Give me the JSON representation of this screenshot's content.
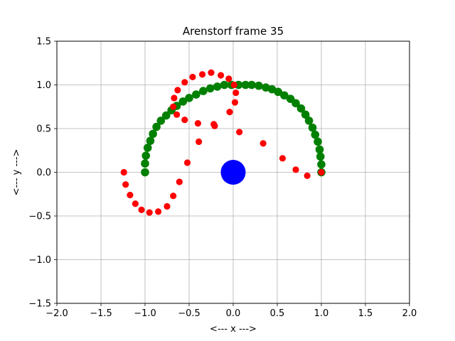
{
  "chart_data": {
    "type": "scatter",
    "title": "Arenstorf frame 35",
    "xlabel": "<---  x  --->",
    "ylabel": "<---  y  --->",
    "xlim": [
      -2.0,
      2.0
    ],
    "ylim": [
      -1.5,
      1.5
    ],
    "grid": true,
    "x_ticks": [
      "−2.0",
      "−1.5",
      "−1.0",
      "−0.5",
      "0.0",
      "0.5",
      "1.0",
      "1.5",
      "2.0"
    ],
    "y_ticks": [
      "−1.5",
      "−1.0",
      "−0.5",
      "0.0",
      "0.5",
      "1.0",
      "1.5"
    ],
    "series": [
      {
        "color": "#008000",
        "marker": "large-dot",
        "points": [
          [
            1.0,
            0.0
          ],
          [
            1.0,
            0.09
          ],
          [
            0.99,
            0.18
          ],
          [
            0.98,
            0.26
          ],
          [
            0.96,
            0.35
          ],
          [
            0.93,
            0.43
          ],
          [
            0.9,
            0.51
          ],
          [
            0.86,
            0.59
          ],
          [
            0.82,
            0.66
          ],
          [
            0.77,
            0.73
          ],
          [
            0.71,
            0.79
          ],
          [
            0.65,
            0.84
          ],
          [
            0.58,
            0.88
          ],
          [
            0.51,
            0.92
          ],
          [
            0.44,
            0.95
          ],
          [
            0.37,
            0.97
          ],
          [
            0.29,
            0.99
          ],
          [
            0.21,
            1.0
          ],
          [
            0.14,
            1.0
          ],
          [
            0.06,
            1.0
          ],
          [
            -0.02,
            1.0
          ],
          [
            -0.1,
            1.0
          ],
          [
            -0.18,
            0.98
          ],
          [
            -0.26,
            0.96
          ],
          [
            -0.34,
            0.93
          ],
          [
            -0.42,
            0.89
          ],
          [
            -0.5,
            0.85
          ],
          [
            -0.57,
            0.81
          ],
          [
            -0.64,
            0.76
          ],
          [
            -0.7,
            0.71
          ],
          [
            -0.76,
            0.65
          ],
          [
            -0.82,
            0.59
          ],
          [
            -0.87,
            0.52
          ],
          [
            -0.91,
            0.44
          ],
          [
            -0.94,
            0.36
          ],
          [
            -0.97,
            0.28
          ],
          [
            -0.99,
            0.19
          ],
          [
            -1.0,
            0.1
          ],
          [
            -1.0,
            0.0
          ]
        ]
      },
      {
        "color": "#ff0000",
        "marker": "dot",
        "points": [
          [
            1.0,
            0.0
          ],
          [
            0.84,
            -0.04
          ],
          [
            0.71,
            0.03
          ],
          [
            0.56,
            0.16
          ],
          [
            0.34,
            0.33
          ],
          [
            0.07,
            0.46
          ],
          [
            -0.21,
            0.53
          ],
          [
            -0.22,
            0.55
          ],
          [
            -0.04,
            0.69
          ],
          [
            0.02,
            0.8
          ],
          [
            0.03,
            0.91
          ],
          [
            0.01,
            1.0
          ],
          [
            -0.05,
            1.07
          ],
          [
            -0.14,
            1.11
          ],
          [
            -0.25,
            1.14
          ],
          [
            -0.35,
            1.12
          ],
          [
            -0.46,
            1.09
          ],
          [
            -0.55,
            1.03
          ],
          [
            -0.63,
            0.94
          ],
          [
            -0.67,
            0.85
          ],
          [
            -0.68,
            0.75
          ],
          [
            -0.64,
            0.66
          ],
          [
            -0.55,
            0.6
          ],
          [
            -0.4,
            0.56
          ],
          [
            -0.39,
            0.35
          ],
          [
            -0.52,
            0.11
          ],
          [
            -0.61,
            -0.11
          ],
          [
            -0.68,
            -0.27
          ],
          [
            -0.75,
            -0.39
          ],
          [
            -0.85,
            -0.45
          ],
          [
            -0.95,
            -0.46
          ],
          [
            -1.04,
            -0.43
          ],
          [
            -1.11,
            -0.36
          ],
          [
            -1.17,
            -0.26
          ],
          [
            -1.22,
            -0.14
          ],
          [
            -1.24,
            0.0
          ]
        ]
      },
      {
        "color": "#0000ff",
        "marker": "large-body",
        "points": [
          [
            0.0,
            0.0
          ]
        ]
      }
    ]
  }
}
